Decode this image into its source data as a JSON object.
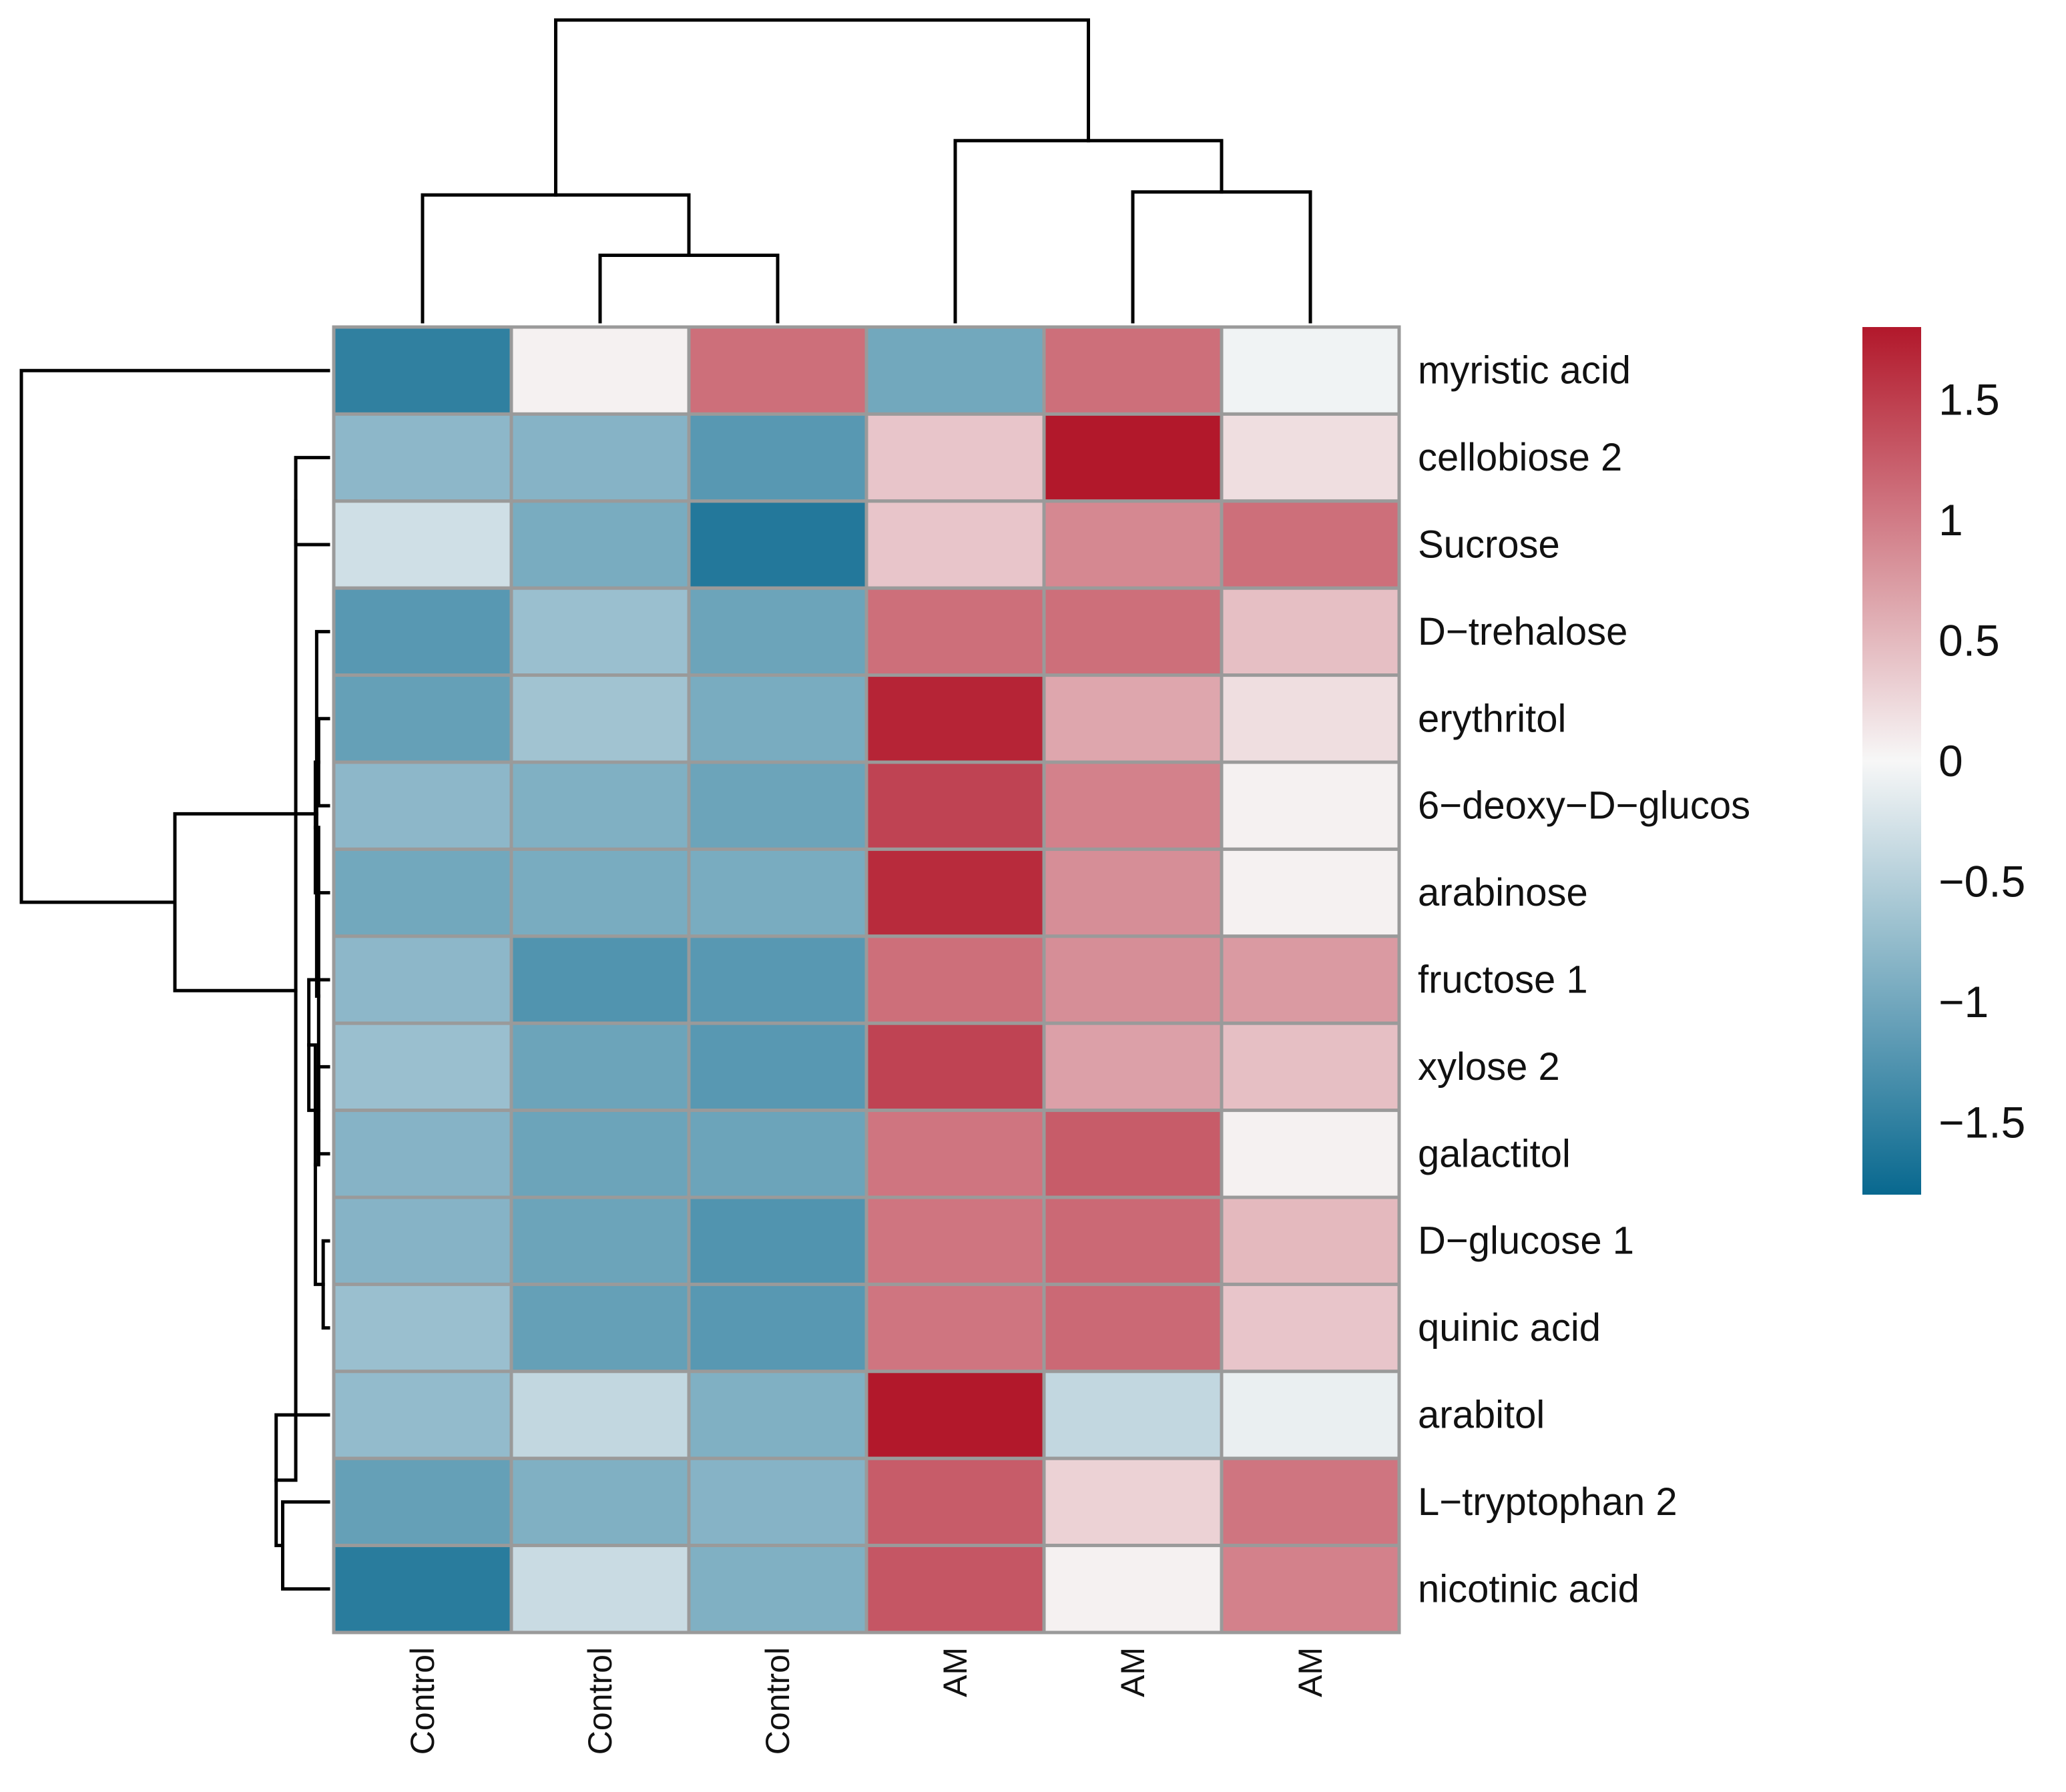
{
  "chart_data": {
    "type": "heatmap",
    "title": "",
    "rows": [
      "myristic acid",
      "cellobiose 2",
      "Sucrose",
      "D−trehalose",
      "erythritol",
      "6−deoxy−D−glucos",
      "arabinose",
      "fructose 1",
      "xylose 2",
      "galactitol",
      "D−glucose 1",
      "quinic acid",
      "arabitol",
      "L−tryptophan 2",
      "nicotinic acid"
    ],
    "columns": [
      "Control",
      "Control",
      "Control",
      "AM",
      "AM",
      "AM"
    ],
    "values": [
      [
        -1.5,
        0.05,
        1.1,
        -1.0,
        1.1,
        -0.05
      ],
      [
        -0.8,
        -0.85,
        -1.2,
        0.4,
        1.8,
        0.2
      ],
      [
        -0.3,
        -0.95,
        -1.6,
        0.4,
        0.9,
        1.1
      ],
      [
        -1.2,
        -0.7,
        -1.05,
        1.1,
        1.1,
        0.45
      ],
      [
        -1.1,
        -0.65,
        -0.95,
        1.7,
        0.65,
        0.2
      ],
      [
        -0.8,
        -0.9,
        -1.05,
        1.45,
        0.95,
        0.05
      ],
      [
        -1.0,
        -0.95,
        -0.95,
        1.65,
        0.85,
        0.05
      ],
      [
        -0.8,
        -1.25,
        -1.2,
        1.1,
        0.85,
        0.75
      ],
      [
        -0.7,
        -1.05,
        -1.2,
        1.45,
        0.7,
        0.45
      ],
      [
        -0.85,
        -1.05,
        -1.05,
        1.05,
        1.25,
        0.05
      ],
      [
        -0.85,
        -1.05,
        -1.25,
        1.05,
        1.15,
        0.5
      ],
      [
        -0.7,
        -1.1,
        -1.2,
        1.05,
        1.15,
        0.4
      ],
      [
        -0.75,
        -0.4,
        -0.9,
        1.8,
        -0.4,
        -0.1
      ],
      [
        -1.1,
        -0.9,
        -0.85,
        1.25,
        0.3,
        1.05
      ],
      [
        -1.55,
        -0.35,
        -0.9,
        1.3,
        0.05,
        0.95
      ]
    ],
    "color_scale": {
      "min": -1.8,
      "max": 1.8,
      "low_color": "#08688f",
      "mid_color": "#f7f7f7",
      "high_color": "#b2182b",
      "ticks": [
        1.5,
        1,
        0.5,
        0,
        -0.5,
        -1,
        -1.5
      ],
      "tick_labels": [
        "1.5",
        "1",
        "0.5",
        "0",
        "−0.5",
        "−1",
        "−1.5"
      ]
    },
    "row_dendrogram": [
      [
        1,
        2
      ],
      [
        13,
        14
      ],
      [
        12,
        16
      ],
      [
        4,
        5
      ],
      [
        18,
        6
      ],
      [
        8,
        9
      ],
      [
        7,
        20
      ],
      [
        10,
        11
      ],
      [
        21,
        22
      ],
      [
        23,
        19
      ],
      [
        3,
        24
      ],
      [
        15,
        17
      ],
      [
        26,
        25
      ],
      [
        0,
        27
      ]
    ],
    "row_dendrogram_heights": [
      0.05,
      0.07,
      0.08,
      0.015,
      0.02,
      0.015,
      0.03,
      0.008,
      0.02,
      0.015,
      0.018,
      0.05,
      0.235,
      0.47
    ],
    "column_dendrogram": [
      [
        1,
        2
      ],
      [
        4,
        5
      ],
      [
        3,
        7
      ],
      [
        0,
        6
      ],
      [
        9,
        8
      ]
    ],
    "column_dendrogram_heights": [
      0.22,
      0.43,
      0.6,
      0.42,
      1.0
    ]
  }
}
